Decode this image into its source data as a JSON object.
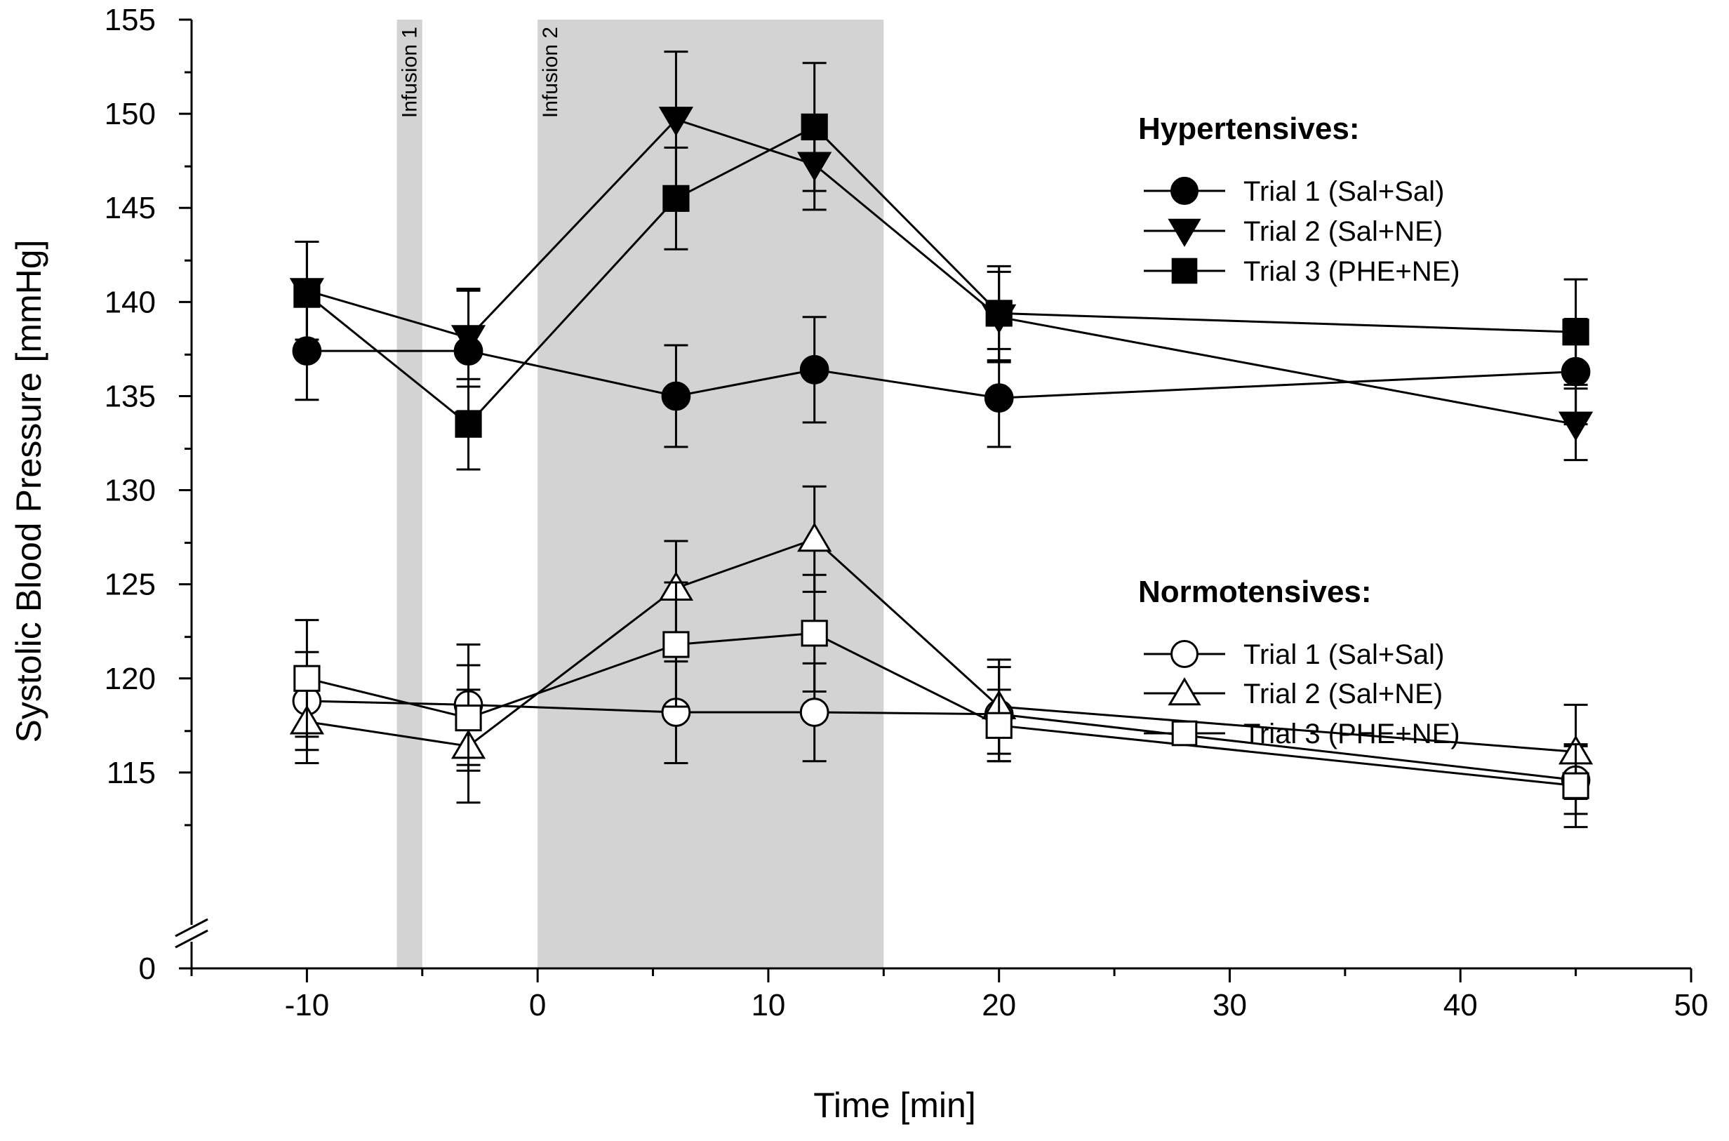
{
  "chart_data": {
    "type": "line",
    "xlabel": "Time [min]",
    "ylabel": "Systolic Blood Pressure [mmHg]",
    "xlim": [
      -15,
      50
    ],
    "ylim": [
      110,
      155
    ],
    "y_axis_break": {
      "below": 0,
      "above": 115
    },
    "x_ticks": [
      -10,
      0,
      10,
      20,
      30,
      40,
      50
    ],
    "y_ticks": [
      115,
      120,
      125,
      130,
      135,
      140,
      145,
      150,
      155
    ],
    "y_zero_label": "0",
    "shaded_regions": [
      {
        "label": "Infusion 1",
        "x_start": -6.1,
        "x_end": -5.0
      },
      {
        "label": "Infusion 2",
        "x_start": 0,
        "x_end": 15
      }
    ],
    "x": [
      -10,
      -3,
      6,
      12,
      20,
      45
    ],
    "groups": [
      {
        "title": "Hypertensives:",
        "fill": "#000000",
        "series": [
          {
            "name": "Trial 1 (Sal+Sal)",
            "marker": "circle",
            "values": [
              137.4,
              137.4,
              135.0,
              136.4,
              134.9,
              136.3
            ],
            "errors": [
              2.6,
              3.2,
              2.7,
              2.8,
              2.6,
              2.8
            ]
          },
          {
            "name": "Trial 2 (Sal+NE)",
            "marker": "triangle-down",
            "values": [
              140.6,
              138.1,
              149.7,
              147.3,
              139.2,
              133.5
            ],
            "errors": [
              2.6,
              2.6,
              3.6,
              2.4,
              2.4,
              1.9
            ]
          },
          {
            "name": "Trial 3 (PHE+NE)",
            "marker": "square",
            "values": [
              140.4,
              133.5,
              145.5,
              149.3,
              139.4,
              138.4
            ],
            "errors": [
              2.8,
              2.4,
              2.7,
              3.4,
              2.5,
              2.8
            ]
          }
        ]
      },
      {
        "title": "Normotensives:",
        "fill": "#ffffff",
        "series": [
          {
            "name": "Trial 1 (Sal+Sal)",
            "marker": "circle",
            "values": [
              118.8,
              118.6,
              118.2,
              118.2,
              118.1,
              114.6
            ],
            "errors": [
              2.6,
              3.2,
              2.7,
              2.6,
              2.5,
              1.8
            ]
          },
          {
            "name": "Trial 2 (Sal+NE)",
            "marker": "triangle-up",
            "values": [
              117.7,
              116.4,
              124.8,
              127.4,
              118.5,
              116.1
            ],
            "errors": [
              2.2,
              3.0,
              2.5,
              2.8,
              2.5,
              2.5
            ]
          },
          {
            "name": "Trial 3 (PHE+NE)",
            "marker": "square",
            "values": [
              120.0,
              117.9,
              121.8,
              122.4,
              117.5,
              114.3
            ],
            "errors": [
              3.1,
              2.8,
              3.3,
              3.1,
              1.9,
              2.2
            ]
          }
        ]
      }
    ]
  }
}
